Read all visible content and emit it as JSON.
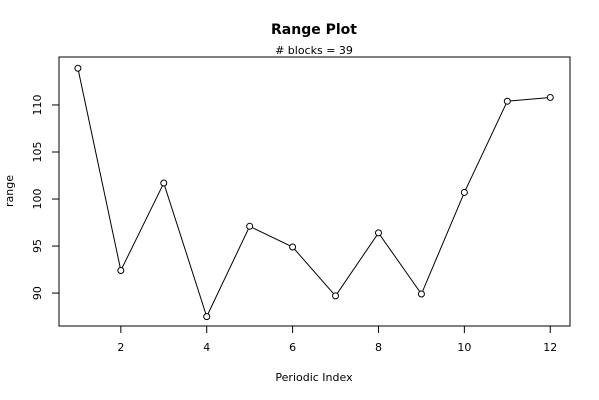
{
  "chart_data": {
    "type": "line",
    "title": "Range Plot",
    "subtitle": "# blocks =  39",
    "x_label": "Periodic Index",
    "y_label": "range",
    "x": [
      1,
      2,
      3,
      4,
      5,
      6,
      7,
      8,
      9,
      10,
      11,
      12
    ],
    "values": [
      113.9,
      92.4,
      101.7,
      87.5,
      97.1,
      94.9,
      89.7,
      96.4,
      89.9,
      100.7,
      110.4,
      110.8
    ],
    "color": "#000000",
    "xlim": [
      0.56,
      12.46
    ],
    "xticks": [
      2,
      4,
      6,
      8,
      10,
      12
    ],
    "ylim": [
      86.5,
      115.1
    ],
    "yticks": [
      90,
      95,
      100,
      105,
      110
    ]
  }
}
